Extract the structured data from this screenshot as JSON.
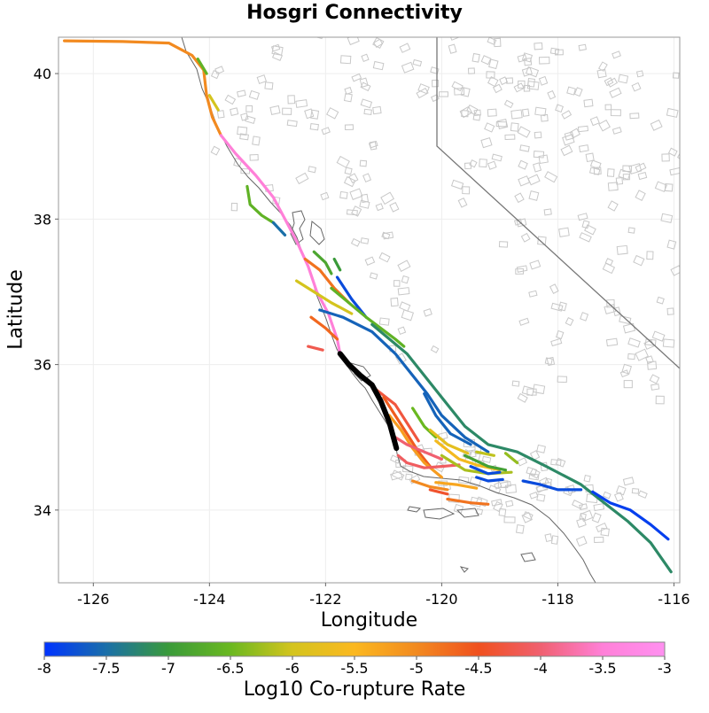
{
  "title": "Hosgri Connectivity",
  "axes": {
    "xlabel": "Longitude",
    "ylabel": "Latitude",
    "xlim": [
      -126.6,
      -115.9
    ],
    "ylim": [
      33.0,
      40.5
    ],
    "xticks": [
      -126,
      -124,
      -122,
      -120,
      -118,
      -116
    ],
    "yticks": [
      34,
      36,
      38,
      40
    ],
    "grid": true
  },
  "colorbar": {
    "label": "Log10 Co-rupture Rate",
    "ticks": [
      "-8",
      "-7.5",
      "-7",
      "-6.5",
      "-6",
      "-5.5",
      "-5",
      "-4.5",
      "-4",
      "-3.5",
      "-3"
    ],
    "range": [
      -8,
      -3
    ],
    "colors": [
      "#0033ff",
      "#1a6fa8",
      "#3a9a3a",
      "#6ab820",
      "#d4c41e",
      "#fbb820",
      "#f28a20",
      "#f0501e",
      "#f06070",
      "#ff80d8",
      "#ff90f0"
    ],
    "position": "bottom"
  },
  "colors": {
    "background_faults": "#c8c8c8",
    "coastline": "#555555",
    "state_border": "#777777",
    "source_fault": "#000000",
    "grid": "#eeeeee"
  },
  "chart_data": {
    "type": "map",
    "title": "Hosgri Connectivity",
    "xlabel": "Longitude",
    "ylabel": "Latitude",
    "source_fault": {
      "path": [
        [
          -121.75,
          36.15
        ],
        [
          -121.6,
          36.0
        ],
        [
          -121.4,
          35.85
        ],
        [
          -121.2,
          35.72
        ],
        [
          -121.05,
          35.5
        ],
        [
          -120.9,
          35.2
        ],
        [
          -120.78,
          34.85
        ]
      ]
    },
    "ruptures": [
      {
        "value": -5.0,
        "path": [
          [
            -126.5,
            40.45
          ],
          [
            -125.5,
            40.44
          ],
          [
            -124.7,
            40.42
          ],
          [
            -124.3,
            40.25
          ],
          [
            -124.1,
            40.05
          ],
          [
            -124.05,
            39.7
          ],
          [
            -123.95,
            39.4
          ],
          [
            -123.8,
            39.15
          ]
        ]
      },
      {
        "value": -3.5,
        "path": [
          [
            -123.8,
            39.15
          ],
          [
            -123.55,
            38.9
          ],
          [
            -123.2,
            38.6
          ],
          [
            -122.9,
            38.3
          ],
          [
            -122.7,
            38.0
          ],
          [
            -122.5,
            37.7
          ],
          [
            -122.3,
            37.35
          ],
          [
            -122.15,
            37.0
          ],
          [
            -121.95,
            36.7
          ],
          [
            -121.8,
            36.35
          ],
          [
            -121.75,
            36.15
          ]
        ]
      },
      {
        "value": -6.6,
        "path": [
          [
            -124.2,
            40.2
          ],
          [
            -124.05,
            40.0
          ]
        ]
      },
      {
        "value": -6.0,
        "path": [
          [
            -124.0,
            39.7
          ],
          [
            -123.85,
            39.5
          ]
        ]
      },
      {
        "value": -6.6,
        "path": [
          [
            -123.35,
            38.45
          ],
          [
            -123.3,
            38.2
          ],
          [
            -123.1,
            38.05
          ],
          [
            -122.9,
            37.95
          ]
        ]
      },
      {
        "value": -7.5,
        "path": [
          [
            -122.9,
            37.95
          ],
          [
            -122.7,
            37.78
          ]
        ]
      },
      {
        "value": -6.8,
        "path": [
          [
            -122.2,
            37.55
          ],
          [
            -122.0,
            37.4
          ],
          [
            -121.9,
            37.25
          ]
        ]
      },
      {
        "value": -7.0,
        "path": [
          [
            -121.85,
            37.45
          ],
          [
            -121.75,
            37.3
          ]
        ]
      },
      {
        "value": -4.8,
        "path": [
          [
            -122.35,
            37.45
          ],
          [
            -122.1,
            37.3
          ],
          [
            -121.85,
            37.05
          ],
          [
            -121.6,
            36.85
          ]
        ]
      },
      {
        "value": -7.8,
        "path": [
          [
            -121.8,
            37.2
          ],
          [
            -121.55,
            36.9
          ],
          [
            -121.3,
            36.65
          ]
        ]
      },
      {
        "value": -6.0,
        "path": [
          [
            -122.5,
            37.15
          ],
          [
            -122.2,
            37.0
          ],
          [
            -121.9,
            36.85
          ],
          [
            -121.55,
            36.7
          ]
        ]
      },
      {
        "value": -6.6,
        "path": [
          [
            -121.9,
            37.05
          ],
          [
            -121.3,
            36.65
          ],
          [
            -120.8,
            36.35
          ],
          [
            -120.65,
            36.25
          ]
        ]
      },
      {
        "value": -7.6,
        "path": [
          [
            -122.1,
            36.75
          ],
          [
            -121.7,
            36.65
          ],
          [
            -121.2,
            36.45
          ],
          [
            -120.8,
            36.15
          ],
          [
            -120.5,
            35.85
          ],
          [
            -120.25,
            35.6
          ],
          [
            -120.0,
            35.3
          ],
          [
            -119.6,
            35.0
          ],
          [
            -119.2,
            34.8
          ]
        ]
      },
      {
        "value": -7.2,
        "path": [
          [
            -121.2,
            36.55
          ],
          [
            -120.6,
            36.15
          ],
          [
            -120.3,
            35.85
          ],
          [
            -120.05,
            35.6
          ],
          [
            -119.6,
            35.15
          ],
          [
            -119.2,
            34.9
          ],
          [
            -118.7,
            34.8
          ],
          [
            -118.2,
            34.6
          ],
          [
            -117.6,
            34.35
          ],
          [
            -117.2,
            34.1
          ],
          [
            -116.8,
            33.85
          ],
          [
            -116.4,
            33.55
          ],
          [
            -116.05,
            33.15
          ]
        ]
      },
      {
        "value": -4.7,
        "path": [
          [
            -122.25,
            36.65
          ],
          [
            -122.0,
            36.5
          ],
          [
            -121.8,
            36.35
          ]
        ]
      },
      {
        "value": -4.2,
        "path": [
          [
            -122.3,
            36.25
          ],
          [
            -122.05,
            36.2
          ]
        ]
      },
      {
        "value": -4.3,
        "path": [
          [
            -121.5,
            35.95
          ],
          [
            -121.2,
            35.7
          ],
          [
            -120.8,
            35.45
          ],
          [
            -120.6,
            35.2
          ],
          [
            -120.4,
            34.95
          ]
        ]
      },
      {
        "value": -4.6,
        "path": [
          [
            -121.0,
            35.55
          ],
          [
            -120.8,
            35.3
          ],
          [
            -120.6,
            35.05
          ],
          [
            -120.4,
            34.8
          ],
          [
            -120.2,
            34.6
          ]
        ]
      },
      {
        "value": -5.2,
        "path": [
          [
            -120.9,
            35.3
          ],
          [
            -120.7,
            35.1
          ],
          [
            -120.5,
            34.85
          ],
          [
            -120.3,
            34.65
          ],
          [
            -120.0,
            34.45
          ]
        ]
      },
      {
        "value": -4.1,
        "path": [
          [
            -120.75,
            34.75
          ],
          [
            -120.6,
            34.65
          ],
          [
            -120.3,
            34.58
          ],
          [
            -120.0,
            34.6
          ],
          [
            -119.7,
            34.62
          ]
        ]
      },
      {
        "value": -4.0,
        "path": [
          [
            -120.8,
            35.0
          ],
          [
            -120.6,
            34.9
          ],
          [
            -120.3,
            34.8
          ],
          [
            -120.0,
            34.7
          ]
        ]
      },
      {
        "value": -7.6,
        "path": [
          [
            -120.3,
            35.6
          ],
          [
            -120.1,
            35.3
          ],
          [
            -119.85,
            35.05
          ],
          [
            -119.5,
            34.9
          ]
        ]
      },
      {
        "value": -6.5,
        "path": [
          [
            -120.5,
            35.4
          ],
          [
            -120.3,
            35.15
          ],
          [
            -120.1,
            35.0
          ]
        ]
      },
      {
        "value": -5.8,
        "path": [
          [
            -120.2,
            35.1
          ],
          [
            -119.9,
            34.9
          ],
          [
            -119.55,
            34.78
          ]
        ]
      },
      {
        "value": -5.6,
        "path": [
          [
            -120.1,
            34.95
          ],
          [
            -119.7,
            34.7
          ],
          [
            -119.4,
            34.62
          ],
          [
            -119.0,
            34.55
          ]
        ]
      },
      {
        "value": -6.2,
        "path": [
          [
            -120.0,
            34.75
          ],
          [
            -119.6,
            34.55
          ],
          [
            -119.2,
            34.5
          ],
          [
            -118.8,
            34.52
          ]
        ]
      },
      {
        "value": -6.9,
        "path": [
          [
            -119.6,
            34.75
          ],
          [
            -119.2,
            34.6
          ],
          [
            -118.9,
            34.55
          ]
        ]
      },
      {
        "value": -7.8,
        "path": [
          [
            -119.5,
            34.6
          ],
          [
            -119.2,
            34.5
          ],
          [
            -119.0,
            34.52
          ]
        ]
      },
      {
        "value": -7.8,
        "path": [
          [
            -119.4,
            34.45
          ],
          [
            -119.2,
            34.4
          ],
          [
            -118.95,
            34.42
          ]
        ]
      },
      {
        "value": -5.3,
        "path": [
          [
            -120.1,
            34.38
          ],
          [
            -119.75,
            34.35
          ],
          [
            -119.4,
            34.3
          ]
        ]
      },
      {
        "value": -5.0,
        "path": [
          [
            -120.5,
            34.4
          ],
          [
            -120.2,
            34.32
          ],
          [
            -119.9,
            34.28
          ]
        ]
      },
      {
        "value": -4.8,
        "path": [
          [
            -119.9,
            34.15
          ],
          [
            -119.5,
            34.1
          ],
          [
            -119.2,
            34.08
          ]
        ]
      },
      {
        "value": -4.4,
        "path": [
          [
            -120.2,
            34.28
          ],
          [
            -119.9,
            34.22
          ]
        ]
      },
      {
        "value": -7.8,
        "path": [
          [
            -118.6,
            34.4
          ],
          [
            -118.3,
            34.35
          ],
          [
            -118.0,
            34.28
          ],
          [
            -117.6,
            34.28
          ]
        ]
      },
      {
        "value": -6.3,
        "path": [
          [
            -118.9,
            34.78
          ],
          [
            -118.7,
            34.65
          ]
        ]
      },
      {
        "value": -6.1,
        "path": [
          [
            -119.4,
            34.8
          ],
          [
            -119.1,
            34.75
          ]
        ]
      },
      {
        "value": -7.9,
        "path": [
          [
            -117.4,
            34.25
          ],
          [
            -117.1,
            34.1
          ],
          [
            -116.75,
            34.0
          ],
          [
            -116.4,
            33.8
          ],
          [
            -116.1,
            33.6
          ]
        ]
      }
    ]
  }
}
